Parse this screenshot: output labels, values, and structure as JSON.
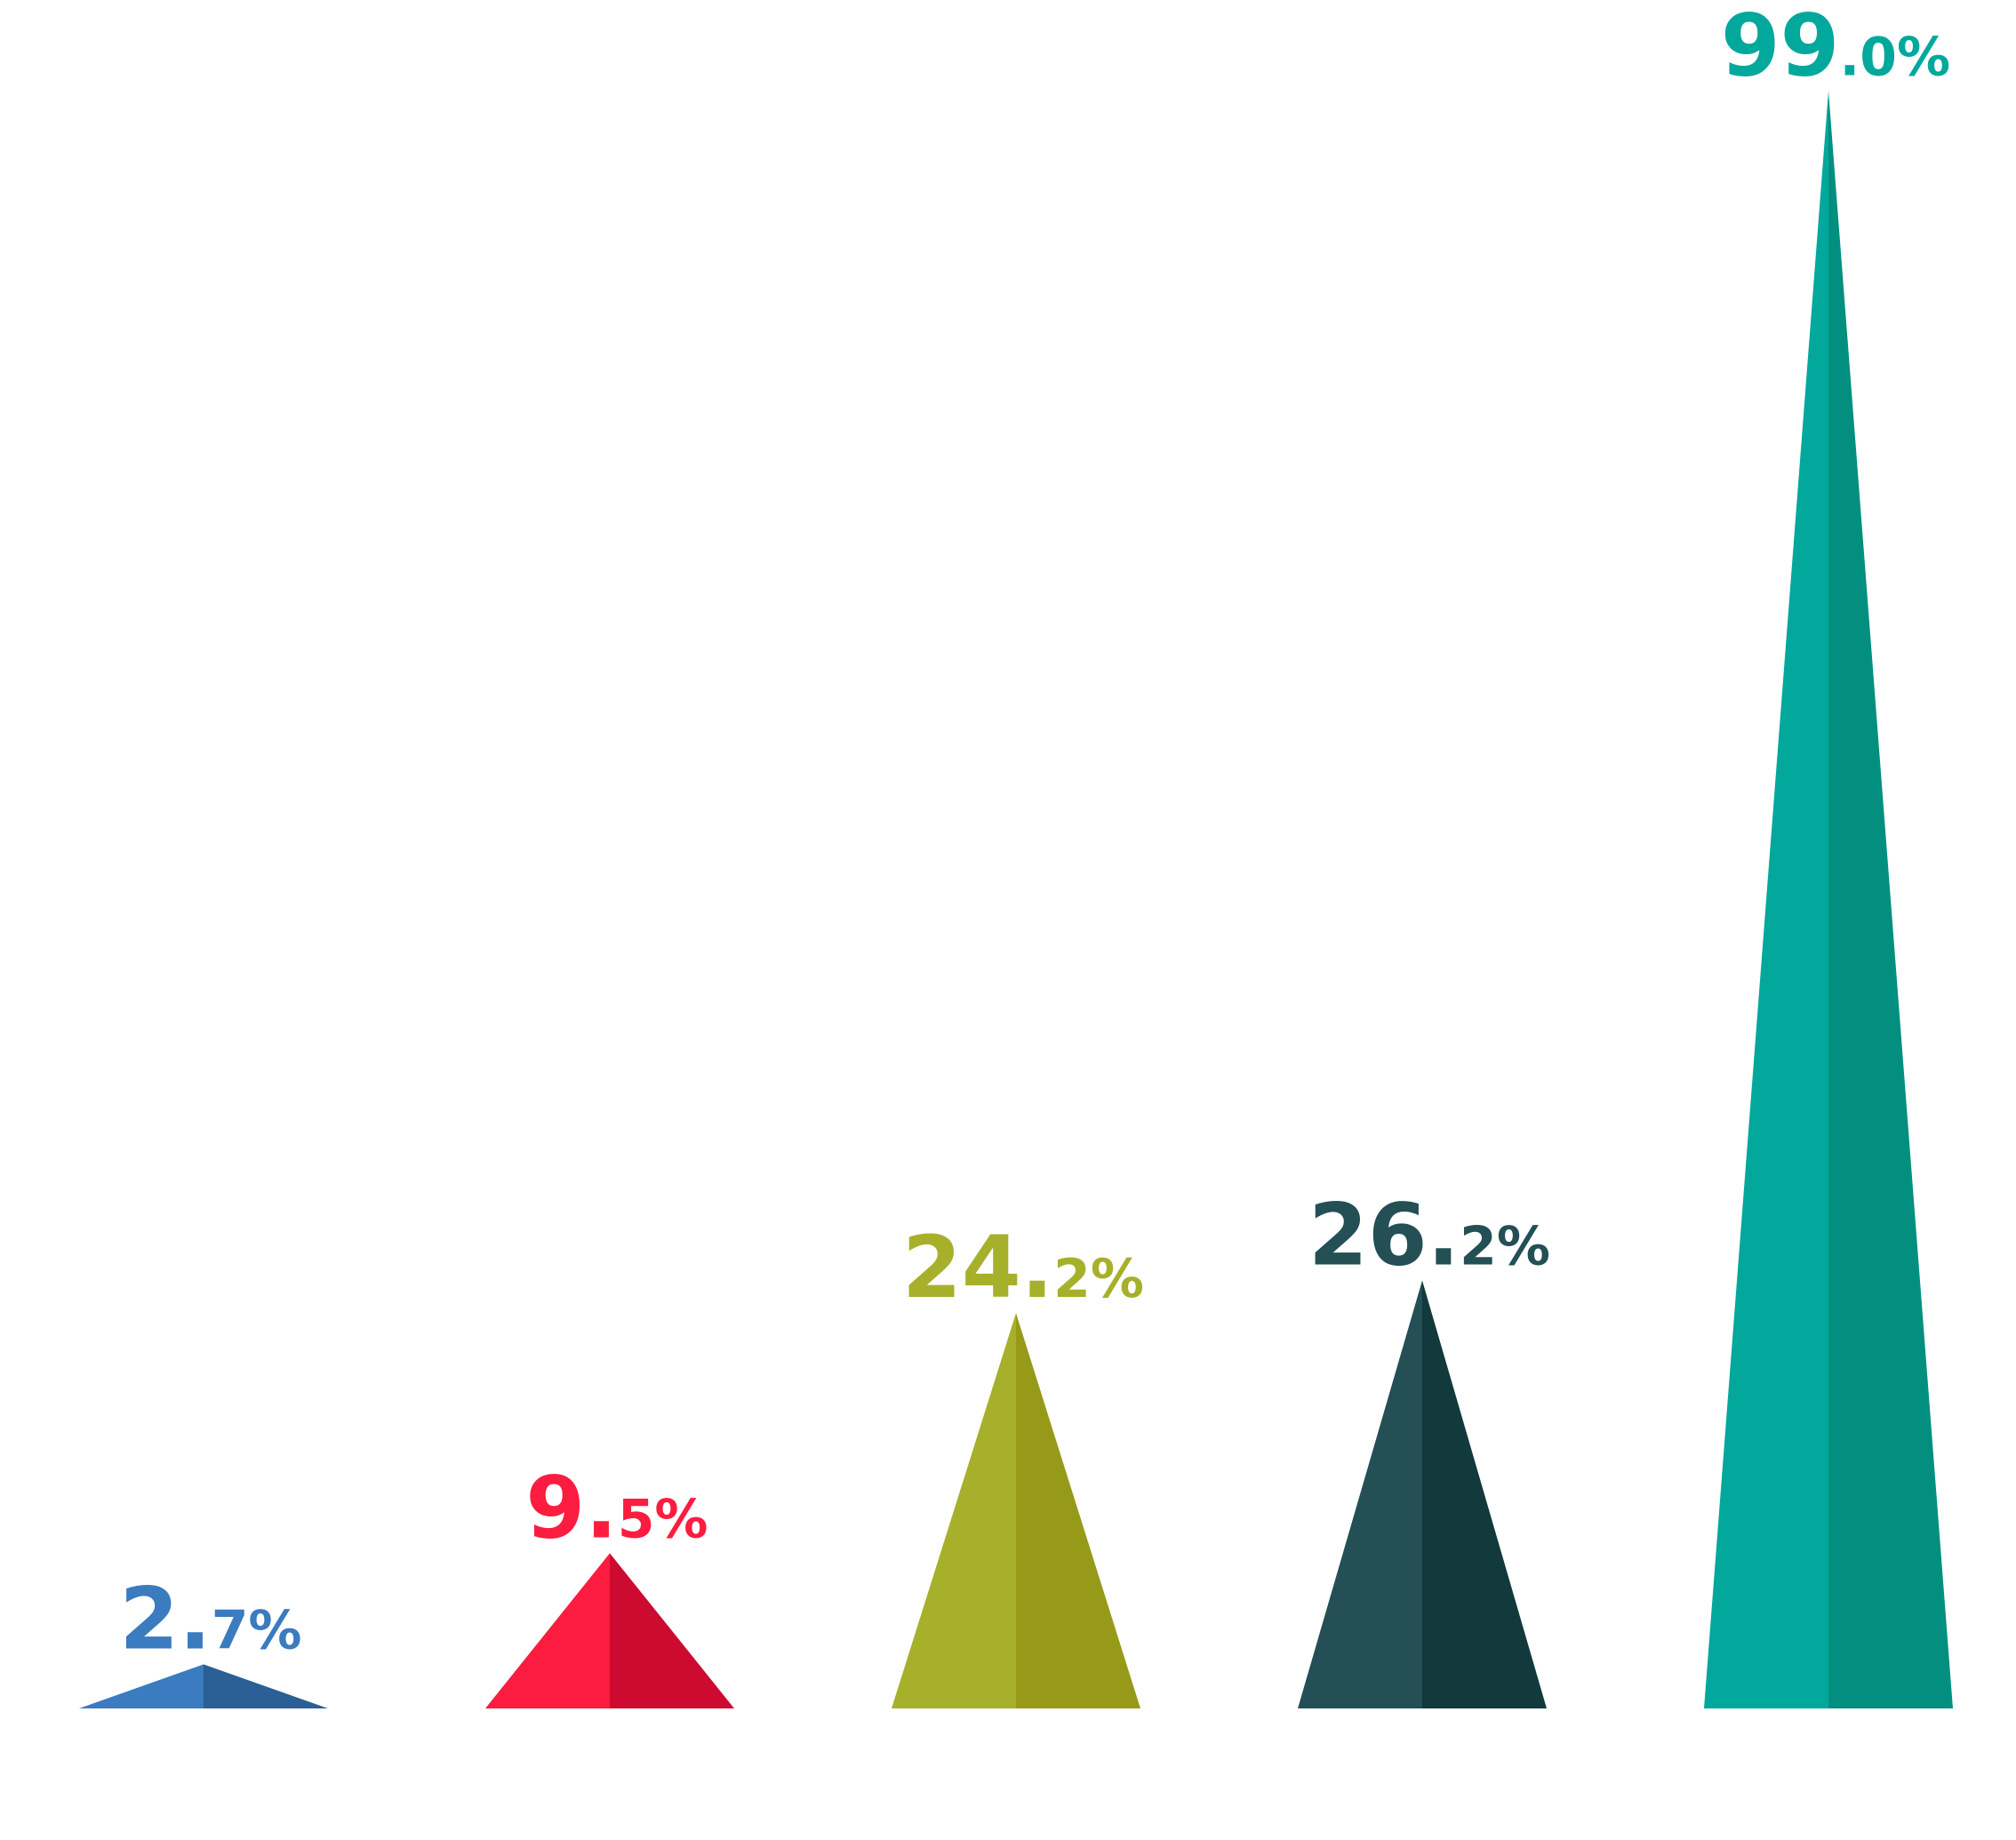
{
  "chart_data": {
    "type": "bar",
    "style": "triangle",
    "values": [
      2.7,
      9.5,
      24.2,
      26.2,
      99.0
    ],
    "labels": [
      {
        "int": "2.",
        "dec": "7%"
      },
      {
        "int": "9.",
        "dec": "5%"
      },
      {
        "int": "24.",
        "dec": "2%"
      },
      {
        "int": "26.",
        "dec": "2%"
      },
      {
        "int": "99",
        "dec": ".0%"
      }
    ],
    "colors": [
      {
        "light": "#3b7bbf",
        "dark": "#2a6096"
      },
      {
        "light": "#fb1c40",
        "dark": "#cd0b31"
      },
      {
        "light": "#a7b02a",
        "dark": "#979a19"
      },
      {
        "light": "#234f55",
        "dark": "#12393c"
      },
      {
        "light": "#02a89c",
        "dark": "#028f7f"
      }
    ],
    "ylim": [
      0,
      100
    ],
    "grid": false,
    "legend": "none"
  }
}
